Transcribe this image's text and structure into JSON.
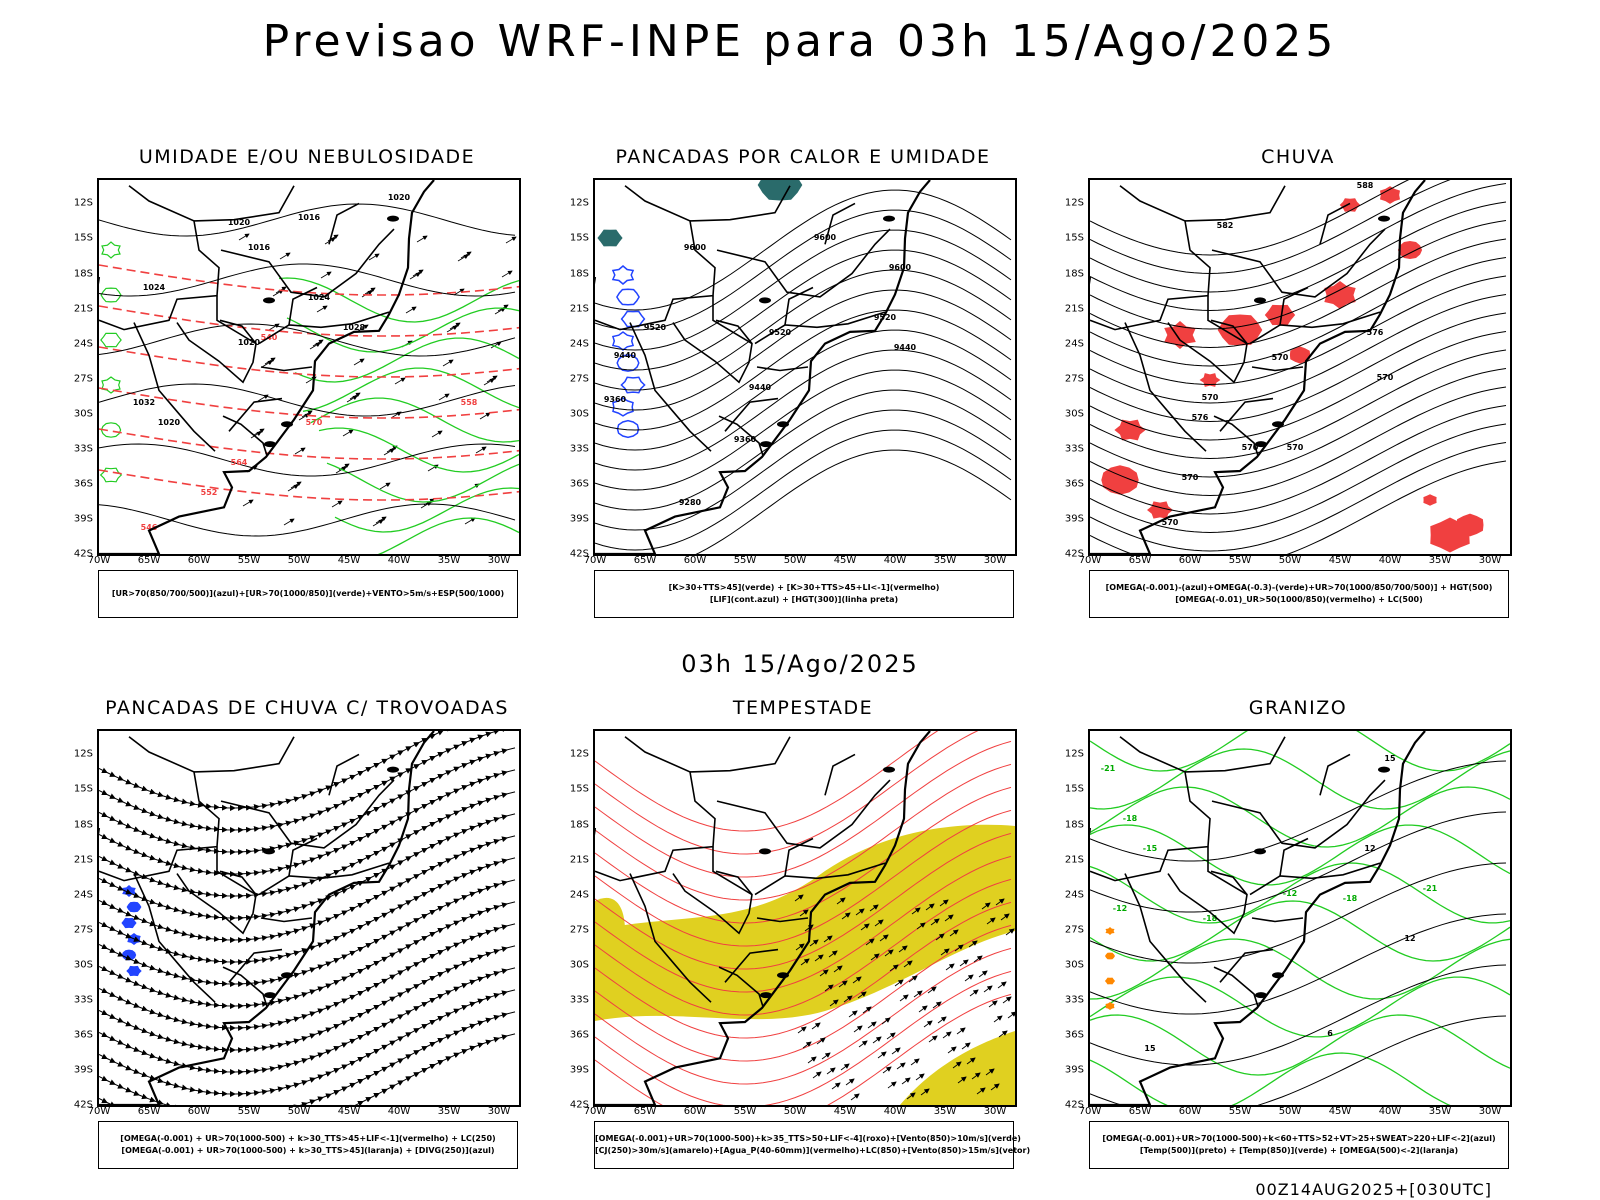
{
  "title": "Previsao WRF-INPE  para 03h 15/Ago/2025",
  "subtitle": "03h 15/Ago/2025",
  "footer": "00Z14AUG2025+[030UTC]",
  "axes": {
    "lat_ticks": [
      "12S",
      "15S",
      "18S",
      "21S",
      "24S",
      "27S",
      "30S",
      "33S",
      "36S",
      "39S",
      "42S"
    ],
    "lon_ticks": [
      "70W",
      "65W",
      "60W",
      "55W",
      "50W",
      "45W",
      "40W",
      "35W",
      "30W"
    ]
  },
  "colors": {
    "humidity_green": "#22cc22",
    "contour_red": "#f04040",
    "rain_red": "#f04040",
    "storm_yellow": "#e0d020",
    "instability_blue": "#2244ff",
    "hail_orange": "#ff8800",
    "cloud_teal": "#2a6b6b"
  },
  "panels": [
    {
      "title": "UMIDADE E/OU NEBULOSIDADE",
      "legend": [
        "[UR>70(850/700/500)](azul)+[UR>70(1000/850)](verde)+VENTO>5m/s+ESP(500/1000)"
      ],
      "contour_labels": [
        "1020",
        "1016",
        "1016",
        "1024",
        "1020",
        "1024",
        "1020",
        "1028",
        "1032",
        "1020",
        "570",
        "564",
        "558",
        "552",
        "546",
        "540"
      ]
    },
    {
      "title": "PANCADAS POR CALOR E UMIDADE",
      "legend": [
        "[K>30+TTS>45](verde) + [K>30+TTS>45+LI<-1](vermelho)",
        "[LIF](cont.azul) + [HGT(300)](linha preta)"
      ],
      "contour_labels": [
        "9600",
        "9600",
        "9600",
        "9520",
        "9520",
        "9520",
        "9440",
        "9440",
        "9440",
        "9360",
        "9360",
        "9280"
      ]
    },
    {
      "title": "CHUVA",
      "legend": [
        "[OMEGA(-0.001)-(azul)+OMEGA(-0.3)-(verde)+UR>70(1000/850/700/500)] + HGT(500)",
        "[OMEGA(-0.01)_UR>50(1000/850)(vermelho) + LC(500)"
      ],
      "contour_labels": [
        "588",
        "582",
        "576",
        "570",
        "576",
        "570",
        "570",
        "570",
        "570",
        "570",
        "570"
      ]
    },
    {
      "title": "PANCADAS DE CHUVA C/ TROVOADAS",
      "legend": [
        "[OMEGA(-0.001) + UR>70(1000-500) + k>30_TTS>45+LIF<-1](vermelho) + LC(250)",
        "[OMEGA(-0.001) + UR>70(1000-500) + k>30_TTS>45](laranja) + [DIVG(250)](azul)"
      ],
      "contour_labels": []
    },
    {
      "title": "TEMPESTADE",
      "legend": [
        "[OMEGA(-0.001)+UR>70(1000-500)+k>35_TTS>50+LIF<-4](roxo)+[Vento(850)>10m/s](verde)",
        "[CJ(250)>30m/s](amarelo)+[Agua_P(40-60mm)](vermelho)+LC(850)+[Vento(850)>15m/s](vetor)"
      ],
      "contour_labels": []
    },
    {
      "title": "GRANIZO",
      "legend": [
        "[OMEGA(-0.001)+UR>70(1000-500)+k<60+TTS>52+VT>25+SWEAT>220+LIF<-2](azul)",
        "[Temp(500)](preto) + [Temp(850)](verde) + [OMEGA(500)<-2](laranja)"
      ],
      "contour_labels": [
        "-21",
        "-18",
        "-15",
        "-12",
        "-18",
        "-12",
        "-18",
        "-21",
        "15",
        "12",
        "12",
        "6",
        "15"
      ]
    }
  ]
}
